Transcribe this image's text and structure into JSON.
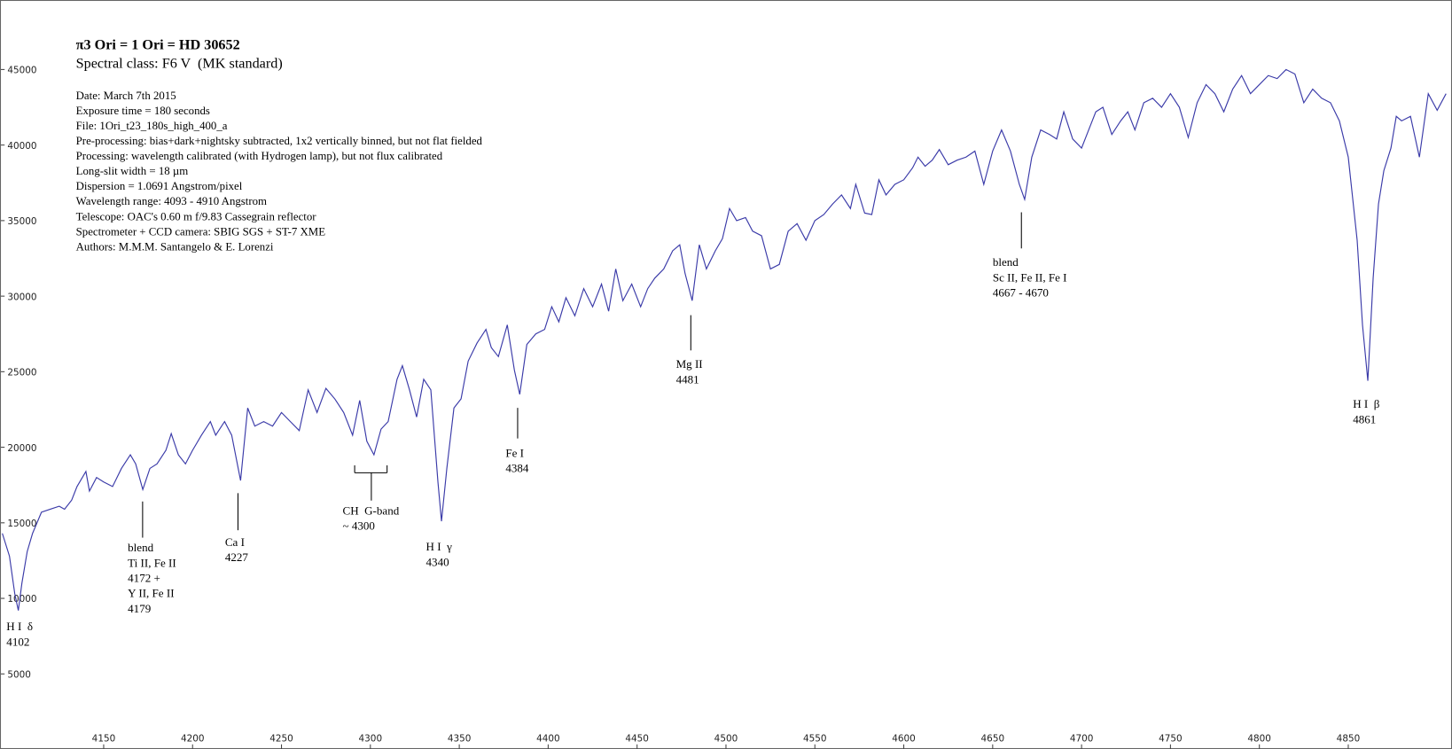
{
  "chart_data": {
    "type": "line",
    "title": "π3 Ori = 1 Ori = HD 30652",
    "subtitle": "Spectral class: F6 V  (MK standard)",
    "info": [
      "Date: March 7th 2015",
      "Exposure time = 180 seconds",
      "File: 1Ori_t23_180s_high_400_a",
      "Pre-processing: bias+dark+nightsky subtracted, 1x2 vertically binned, but not flat fielded",
      "Processing: wavelength calibrated (with Hydrogen lamp), but not flux calibrated",
      "Long-slit width = 18 µm",
      "Dispersion = 1.0691 Angstrom/pixel",
      "Wavelength range: 4093 - 4910 Angstrom",
      "Telescope: OAC's 0.60 m f/9.83 Cassegrain reflector",
      "Spectrometer + CCD camera: SBIG SGS + ST-7 XME",
      "Authors: M.M.M. Santangelo & E. Lorenzi"
    ],
    "annotations": [
      [
        "H I  δ",
        "4102"
      ],
      [
        "blend",
        "Ti II, Fe II",
        "4172 +",
        "Y II, Fe II",
        "4179"
      ],
      [
        "Ca I",
        "4227"
      ],
      [
        "CH  G-band",
        "~ 4300"
      ],
      [
        "H I  γ",
        "4340"
      ],
      [
        "Fe I",
        "4384"
      ],
      [
        "Mg II",
        "4481"
      ],
      [
        "blend",
        "Sc II, Fe II, Fe I",
        "4667 - 4670"
      ],
      [
        "H I  β",
        "4861"
      ]
    ],
    "xlim": [
      4092,
      4906
    ],
    "ylim": [
      0,
      49600
    ],
    "xticks": [
      4150,
      4200,
      4250,
      4300,
      4350,
      4400,
      4450,
      4500,
      4550,
      4600,
      4650,
      4700,
      4750,
      4800,
      4850
    ],
    "yticks": [
      5000,
      10000,
      15000,
      20000,
      25000,
      30000,
      35000,
      40000,
      45000
    ],
    "grid": false,
    "x": [
      4093,
      4097,
      4100,
      4102,
      4104,
      4107,
      4110,
      4115,
      4120,
      4125,
      4128,
      4132,
      4135,
      4140,
      4142,
      4146,
      4150,
      4155,
      4160,
      4165,
      4168,
      4172,
      4176,
      4180,
      4185,
      4188,
      4192,
      4196,
      4200,
      4205,
      4210,
      4213,
      4218,
      4222,
      4227,
      4231,
      4235,
      4240,
      4245,
      4250,
      4255,
      4260,
      4265,
      4270,
      4275,
      4280,
      4285,
      4290,
      4294,
      4298,
      4302,
      4306,
      4310,
      4315,
      4318,
      4322,
      4326,
      4330,
      4334,
      4338,
      4340,
      4343,
      4347,
      4351,
      4355,
      4360,
      4365,
      4368,
      4372,
      4377,
      4381,
      4384,
      4388,
      4393,
      4398,
      4402,
      4406,
      4410,
      4415,
      4420,
      4425,
      4430,
      4434,
      4438,
      4442,
      4447,
      4452,
      4456,
      4460,
      4465,
      4470,
      4474,
      4477,
      4481,
      4485,
      4489,
      4494,
      4498,
      4502,
      4506,
      4511,
      4515,
      4520,
      4525,
      4530,
      4535,
      4540,
      4545,
      4550,
      4555,
      4560,
      4565,
      4570,
      4573,
      4578,
      4582,
      4586,
      4590,
      4595,
      4600,
      4605,
      4608,
      4612,
      4616,
      4620,
      4625,
      4630,
      4635,
      4640,
      4645,
      4650,
      4655,
      4660,
      4665,
      4668,
      4672,
      4677,
      4682,
      4686,
      4690,
      4695,
      4700,
      4704,
      4708,
      4712,
      4717,
      4722,
      4726,
      4730,
      4735,
      4740,
      4745,
      4750,
      4755,
      4760,
      4765,
      4770,
      4775,
      4780,
      4785,
      4790,
      4795,
      4800,
      4805,
      4810,
      4815,
      4820,
      4825,
      4830,
      4835,
      4840,
      4845,
      4850,
      4855,
      4858,
      4861,
      4864,
      4867,
      4870,
      4874,
      4877,
      4880,
      4885,
      4890,
      4895,
      4900,
      4905
    ],
    "series": [
      {
        "name": "spectrum",
        "color": "#3a3aa8",
        "values": [
          14300,
          12800,
          10300,
          9200,
          11000,
          13100,
          14300,
          15700,
          15900,
          16100,
          15900,
          16500,
          17400,
          18400,
          17100,
          18000,
          17700,
          17400,
          18600,
          19500,
          18900,
          17200,
          18600,
          18900,
          19800,
          20900,
          19500,
          18900,
          19800,
          20800,
          21700,
          20800,
          21700,
          20800,
          17800,
          22600,
          21400,
          21700,
          21400,
          22300,
          21700,
          21100,
          23800,
          22300,
          23900,
          23200,
          22300,
          20800,
          23100,
          20400,
          19500,
          21200,
          21700,
          24500,
          25400,
          23800,
          22000,
          24500,
          23800,
          17700,
          15100,
          18600,
          22600,
          23200,
          25700,
          26900,
          27800,
          26600,
          26000,
          28100,
          25100,
          23500,
          26800,
          27500,
          27800,
          29300,
          28300,
          29900,
          28700,
          30500,
          29300,
          30800,
          29000,
          31800,
          29700,
          30800,
          29300,
          30500,
          31200,
          31800,
          33000,
          33400,
          31500,
          29700,
          33400,
          31800,
          33000,
          33800,
          35800,
          35000,
          35200,
          34300,
          34000,
          31800,
          32100,
          34300,
          34800,
          33700,
          35000,
          35400,
          36100,
          36700,
          35800,
          37400,
          35500,
          35400,
          37700,
          36700,
          37400,
          37700,
          38500,
          39200,
          38600,
          39000,
          39700,
          38700,
          39000,
          39200,
          39600,
          37400,
          39600,
          41000,
          39600,
          37400,
          36400,
          39200,
          41000,
          40700,
          40400,
          42200,
          40400,
          39800,
          41000,
          42200,
          42500,
          40700,
          41600,
          42200,
          41000,
          42800,
          43100,
          42500,
          43400,
          42500,
          40500,
          42800,
          44000,
          43400,
          42200,
          43700,
          44600,
          43400,
          44000,
          44600,
          44400,
          45000,
          44700,
          42800,
          43700,
          43100,
          42800,
          41600,
          39200,
          33700,
          28100,
          24400,
          31200,
          36100,
          38300,
          39800,
          41900,
          41600,
          41900,
          39200,
          43400,
          42300,
          43400
        ]
      }
    ]
  }
}
